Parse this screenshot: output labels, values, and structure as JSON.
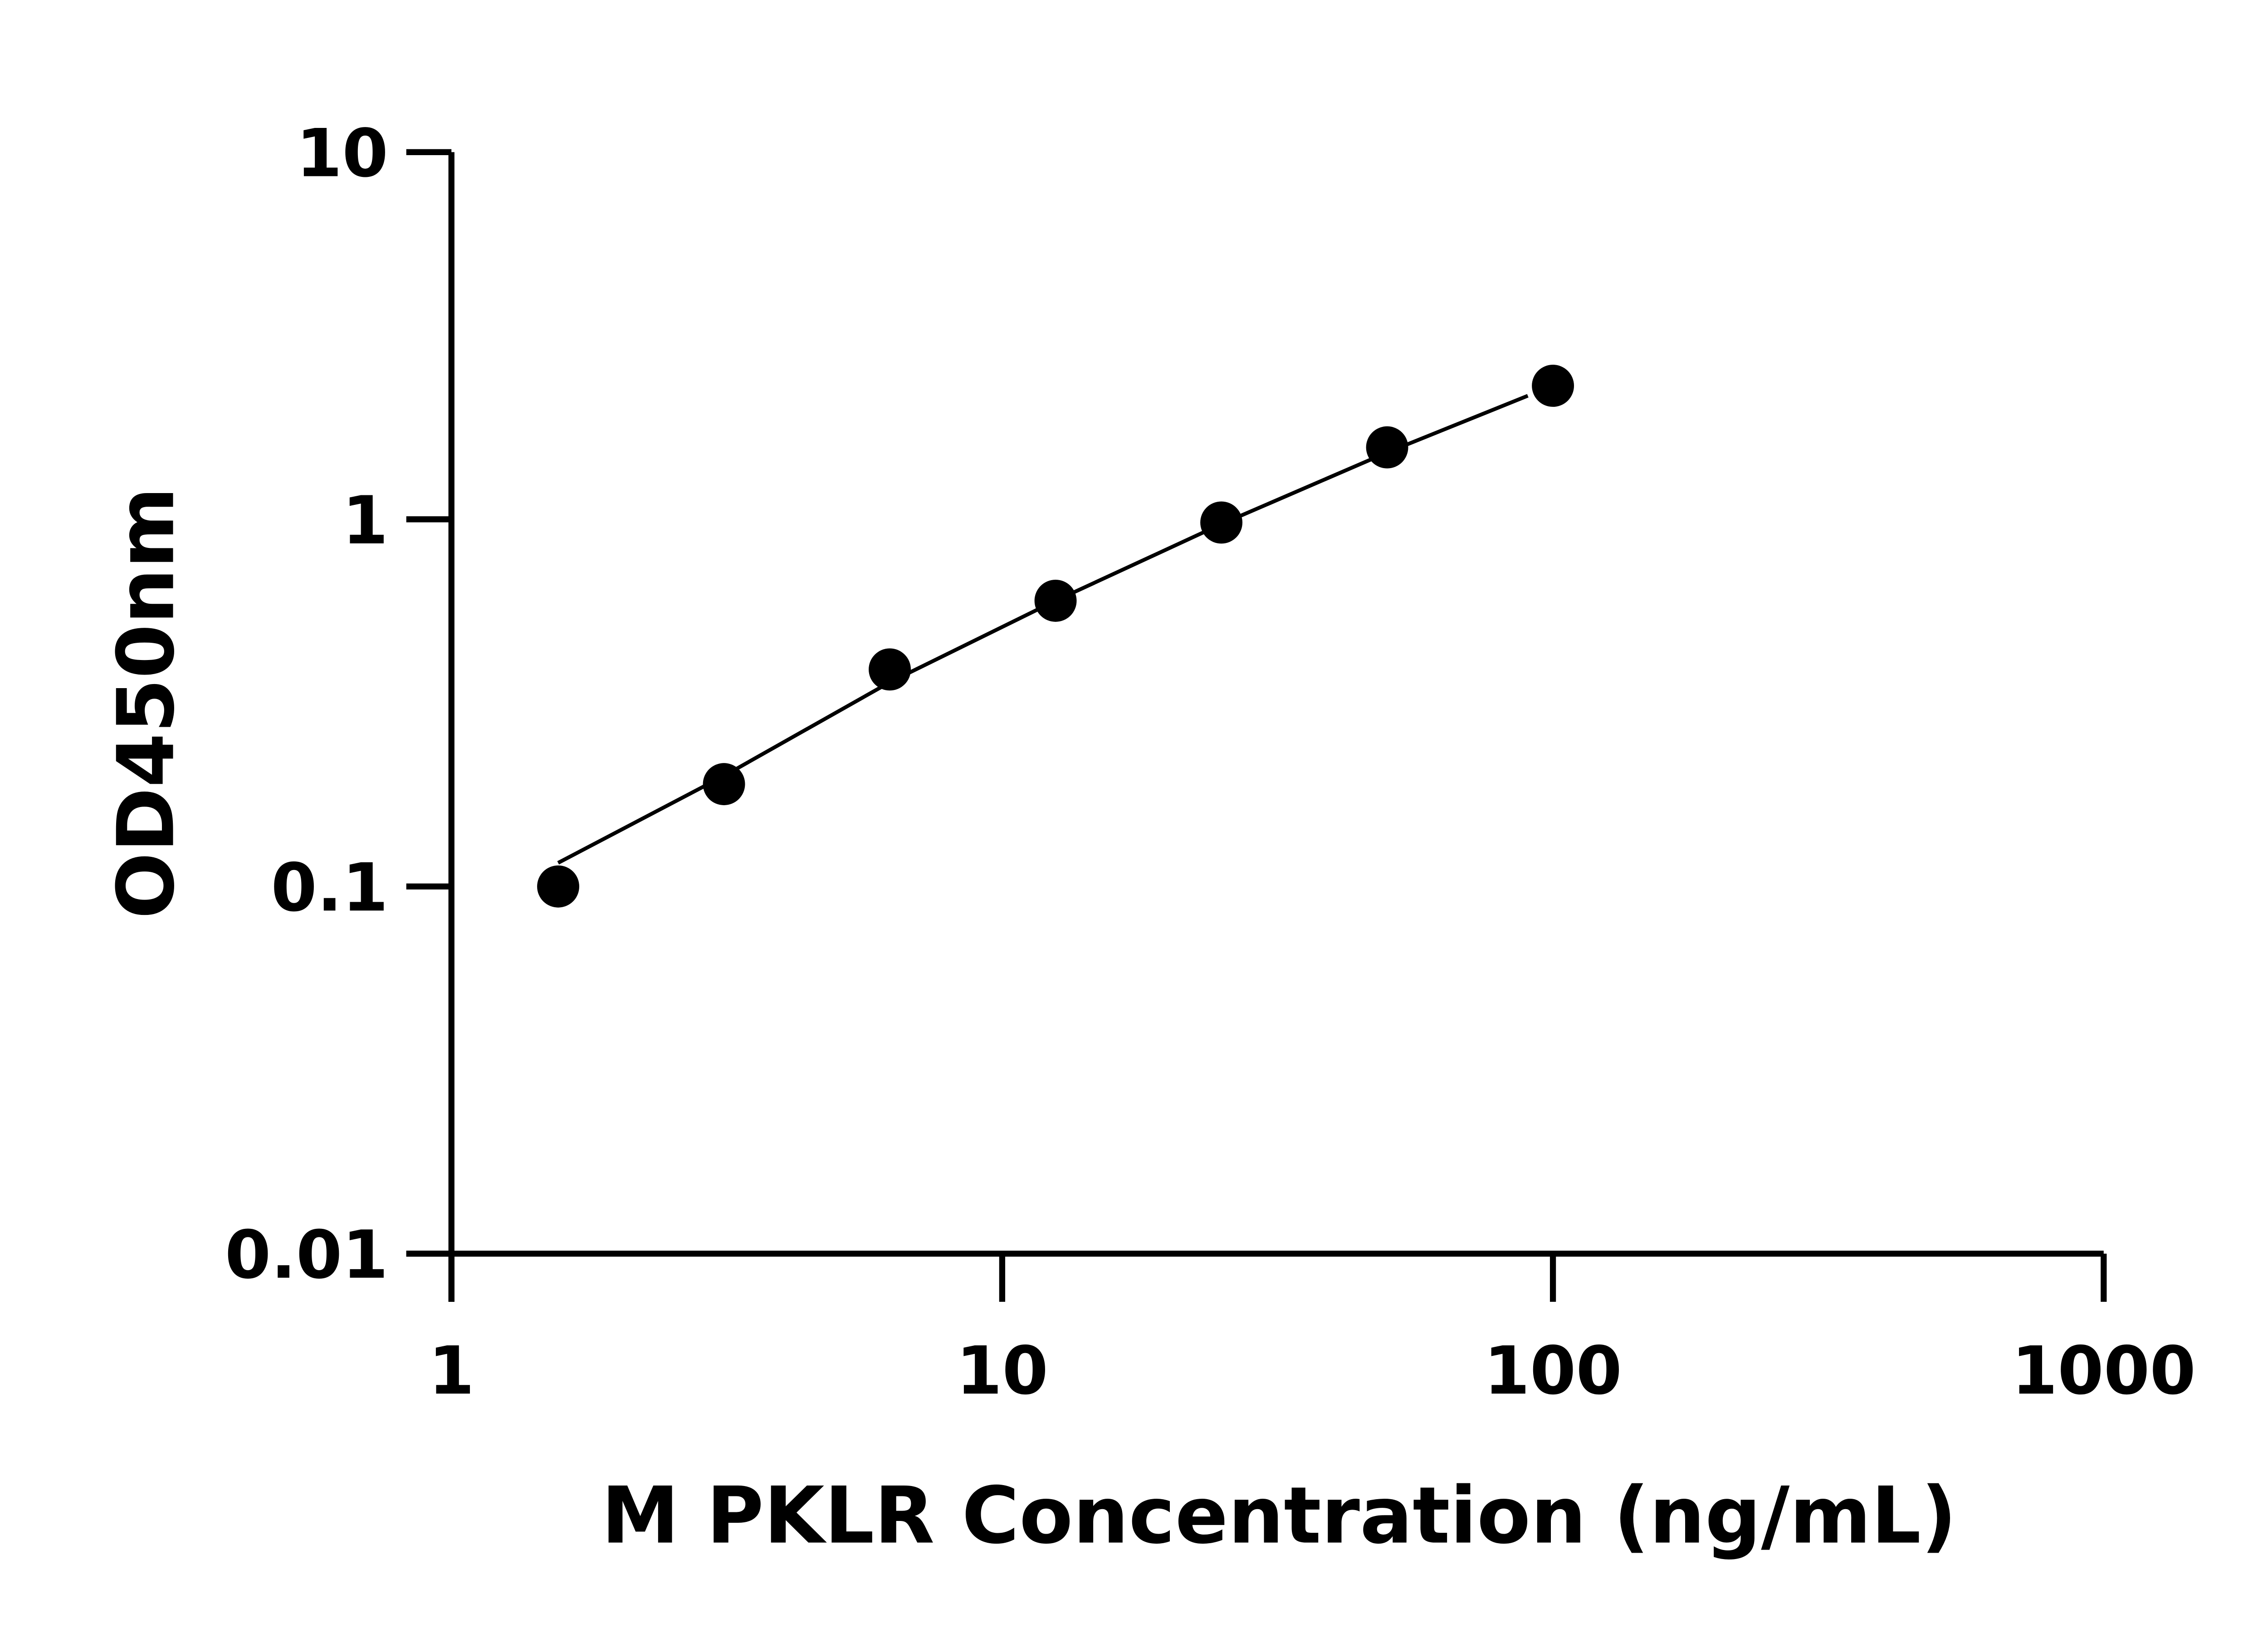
{
  "chart_data": {
    "type": "scatter",
    "title": "",
    "xlabel": "M PKLR Concentration (ng/mL)",
    "ylabel": "OD450nm",
    "xscale": "log",
    "yscale": "log",
    "xlim": [
      1,
      1000
    ],
    "ylim": [
      0.01,
      10
    ],
    "xticks": [
      "1",
      "10",
      "100",
      "1000"
    ],
    "yticks": [
      "0.01",
      "0.1",
      "1",
      "10"
    ],
    "grid": false,
    "legend": "none",
    "series": [
      {
        "x": [
          1.5625,
          3.125,
          6.25,
          12.5,
          25,
          50,
          100
        ],
        "y": [
          0.1,
          0.19,
          0.39,
          0.6,
          0.98,
          1.57,
          2.31
        ],
        "marker": "filled-circle",
        "color": "#000000"
      }
    ],
    "fit_curve": {
      "x": [
        1.5625,
        3.125,
        6.25,
        12.5,
        25,
        50,
        90
      ],
      "y": [
        0.116,
        0.2,
        0.36,
        0.6,
        0.97,
        1.52,
        2.17
      ],
      "color": "#000000"
    }
  }
}
